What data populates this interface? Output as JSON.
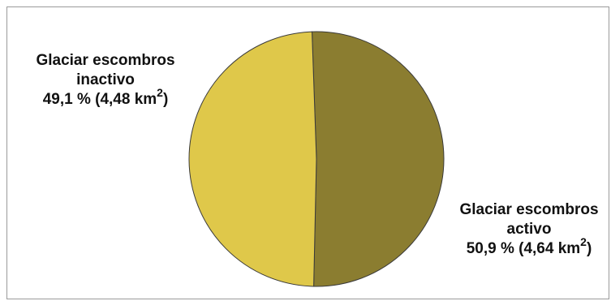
{
  "chart_data": {
    "type": "pie",
    "title": "",
    "slices": [
      {
        "label_line1": "Glaciar escombros",
        "label_line2": "activo",
        "percent_text": "50,9 % (4,64 km",
        "unit_exponent": "2",
        "unit_close": ")",
        "value": 50.9,
        "area_km2": 4.64,
        "color": "#8b7d30"
      },
      {
        "label_line1": "Glaciar escombros",
        "label_line2": "inactivo",
        "percent_text": "49,1 % (4,48 km",
        "unit_exponent": "2",
        "unit_close": ")",
        "value": 49.1,
        "area_km2": 4.48,
        "color": "#dfc84a"
      }
    ],
    "start_angle_deg": -2,
    "direction": "clockwise",
    "legend": "none"
  }
}
